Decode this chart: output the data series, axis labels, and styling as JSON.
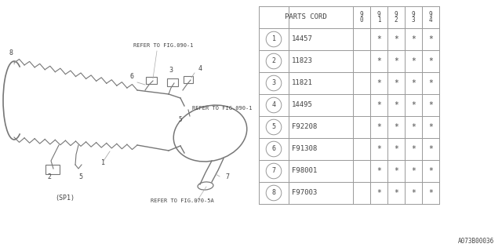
{
  "bg_color": "#ffffff",
  "line_color": "#999999",
  "text_color": "#444444",
  "header_row": [
    "PARTS CORD",
    "9\n0",
    "9\n1",
    "9\n2",
    "9\n3",
    "9\n4"
  ],
  "parts": [
    [
      "1",
      "14457",
      "",
      "*",
      "*",
      "*",
      "*"
    ],
    [
      "2",
      "11823",
      "",
      "*",
      "*",
      "*",
      "*"
    ],
    [
      "3",
      "11821",
      "",
      "*",
      "*",
      "*",
      "*"
    ],
    [
      "4",
      "14495",
      "",
      "*",
      "*",
      "*",
      "*"
    ],
    [
      "5",
      "F92208",
      "",
      "*",
      "*",
      "*",
      "*"
    ],
    [
      "6",
      "F91308",
      "",
      "*",
      "*",
      "*",
      "*"
    ],
    [
      "7",
      "F98001",
      "",
      "*",
      "*",
      "*",
      "*"
    ],
    [
      "8",
      "F97003",
      "",
      "*",
      "*",
      "*",
      "*"
    ]
  ],
  "footer_text": "A073B00036"
}
